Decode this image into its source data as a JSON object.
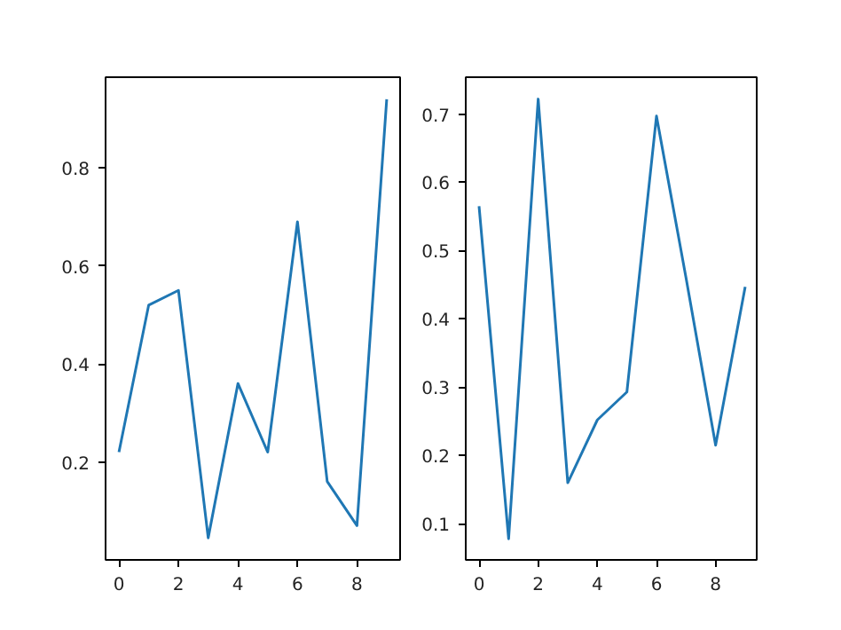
{
  "chart_data": [
    {
      "type": "line",
      "x": [
        0,
        1,
        2,
        3,
        4,
        5,
        6,
        7,
        8,
        9
      ],
      "series": [
        {
          "color": "#1f77b4",
          "values": [
            0.22,
            0.52,
            0.55,
            0.045,
            0.36,
            0.22,
            0.69,
            0.16,
            0.07,
            0.94
          ]
        }
      ],
      "xlim": [
        -0.45,
        9.45
      ],
      "ylim": [
        0.0,
        0.985
      ],
      "xticks": [
        0,
        2,
        4,
        6,
        8
      ],
      "yticks": [
        0.2,
        0.4,
        0.6,
        0.8
      ],
      "grid": false
    },
    {
      "type": "line",
      "x": [
        0,
        1,
        2,
        3,
        4,
        5,
        6,
        7,
        8,
        9
      ],
      "series": [
        {
          "color": "#1f77b4",
          "values": [
            0.565,
            0.078,
            0.722,
            0.16,
            0.252,
            0.293,
            0.697,
            0.46,
            0.215,
            0.447
          ]
        }
      ],
      "xlim": [
        -0.45,
        9.45
      ],
      "ylim": [
        0.047,
        0.754
      ],
      "xticks": [
        0,
        2,
        4,
        6,
        8
      ],
      "yticks": [
        0.1,
        0.2,
        0.3,
        0.4,
        0.5,
        0.6,
        0.7
      ],
      "grid": false
    }
  ]
}
